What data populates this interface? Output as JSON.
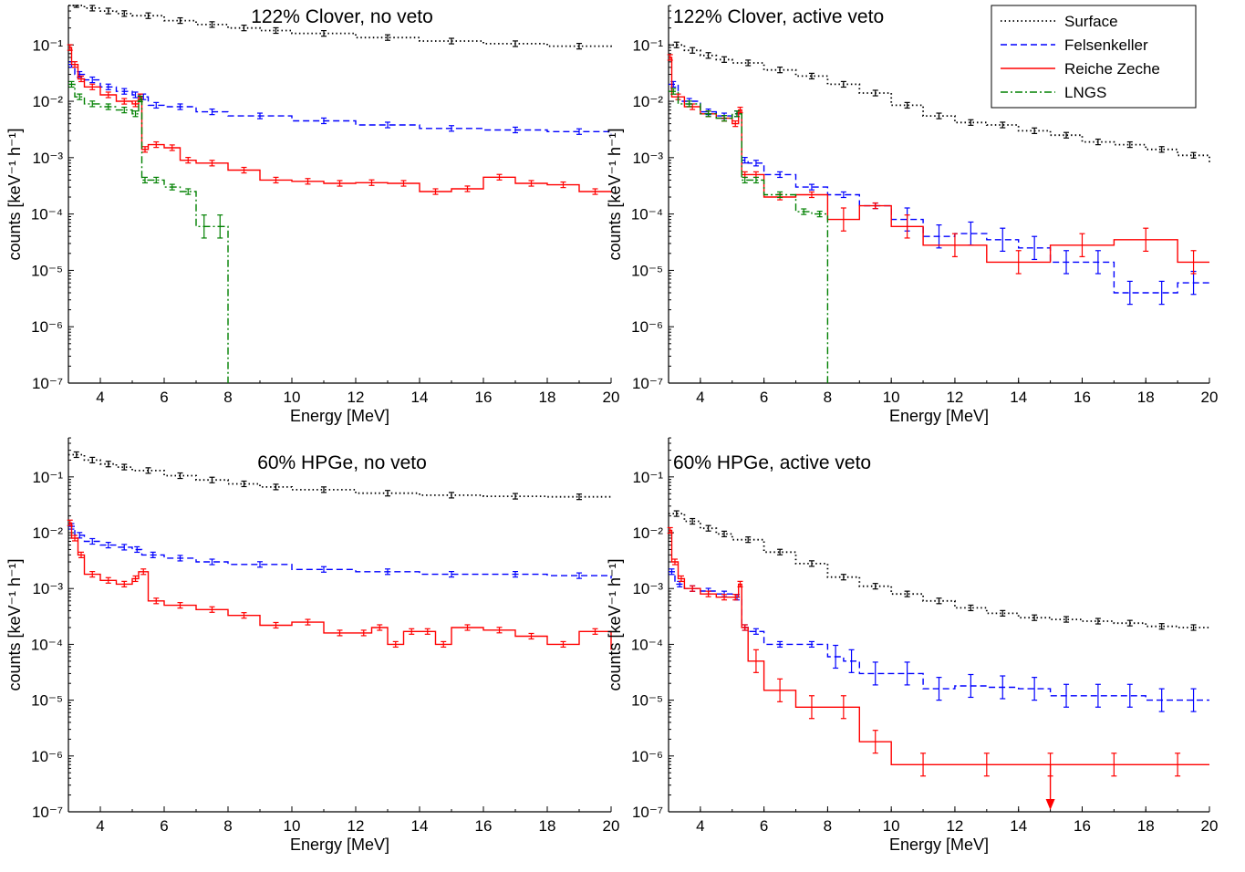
{
  "legend": {
    "placement": "top-right of upper-right panel",
    "entries": [
      {
        "name": "Surface",
        "color": "#000000",
        "style": "dotted"
      },
      {
        "name": "Felsenkeller",
        "color": "#0000ff",
        "style": "dashed"
      },
      {
        "name": "Reiche Zeche",
        "color": "#ff0000",
        "style": "solid"
      },
      {
        "name": "LNGS",
        "color": "#008000",
        "style": "dashdot"
      }
    ]
  },
  "chart_data": [
    {
      "type": "line",
      "title": "122% Clover, no veto",
      "xlabel": "Energy [MeV]",
      "ylabel": "counts [keV⁻¹ h⁻¹]",
      "xlim": [
        3,
        20
      ],
      "ylim_log10": [
        -7,
        -0.3
      ],
      "x_ticks": [
        4,
        6,
        8,
        10,
        12,
        14,
        16,
        18,
        20
      ],
      "y_ticks": [
        "10⁻¹",
        "10⁻²",
        "10⁻³",
        "10⁻⁴",
        "10⁻⁵",
        "10⁻⁶",
        "10⁻⁷"
      ],
      "series": [
        {
          "name": "Surface",
          "x": [
            3,
            3.5,
            4,
            4.5,
            5,
            6,
            7,
            8,
            9,
            10,
            12,
            14,
            16,
            18,
            20
          ],
          "y": [
            0.52,
            0.45,
            0.4,
            0.36,
            0.33,
            0.27,
            0.23,
            0.2,
            0.18,
            0.16,
            0.135,
            0.117,
            0.105,
            0.095,
            0.088
          ]
        },
        {
          "name": "Felsenkeller",
          "x": [
            3,
            3.2,
            3.5,
            4,
            4.5,
            5,
            5.2,
            5.5,
            6,
            7,
            8,
            10,
            12,
            14,
            16,
            18,
            20
          ],
          "y": [
            0.045,
            0.03,
            0.024,
            0.018,
            0.015,
            0.013,
            0.012,
            0.0085,
            0.008,
            0.0065,
            0.0055,
            0.0045,
            0.0038,
            0.0033,
            0.0031,
            0.0029,
            0.0026
          ]
        },
        {
          "name": "Reiche Zeche",
          "x": [
            3,
            3.1,
            3.3,
            3.5,
            4,
            4.5,
            5,
            5.2,
            5.3,
            5.5,
            6,
            6.5,
            7,
            8,
            9,
            10,
            11,
            12,
            13,
            14,
            15,
            16,
            17,
            18,
            19,
            20
          ],
          "y": [
            0.09,
            0.045,
            0.025,
            0.018,
            0.013,
            0.01,
            0.009,
            0.012,
            0.0014,
            0.0017,
            0.0015,
            0.0009,
            0.0008,
            0.0006,
            0.0004,
            0.00038,
            0.00035,
            0.00036,
            0.00035,
            0.00025,
            0.00028,
            0.00045,
            0.00035,
            0.00033,
            0.00025,
            0.00024
          ]
        },
        {
          "name": "LNGS",
          "x": [
            3,
            3.2,
            3.5,
            4,
            4.5,
            5,
            5.2,
            5.3,
            5.5,
            6,
            6.5,
            7,
            7.5,
            8
          ],
          "y": [
            0.02,
            0.012,
            0.009,
            0.008,
            0.007,
            0.006,
            0.011,
            0.0004,
            0.0004,
            0.0003,
            0.00025,
            6e-05,
            6e-05,
            1e-07
          ]
        }
      ]
    },
    {
      "type": "line",
      "title": "122% Clover, active veto",
      "xlabel": "Energy [MeV]",
      "ylabel": "counts [keV⁻¹ h⁻¹]",
      "xlim": [
        3,
        20
      ],
      "ylim_log10": [
        -7,
        -0.3
      ],
      "x_ticks": [
        4,
        6,
        8,
        10,
        12,
        14,
        16,
        18,
        20
      ],
      "y_ticks": [
        "10⁻¹",
        "10⁻²",
        "10⁻³",
        "10⁻⁴",
        "10⁻⁵",
        "10⁻⁶",
        "10⁻⁷"
      ],
      "series": [
        {
          "name": "Surface",
          "x": [
            3,
            3.5,
            4,
            4.5,
            5,
            6,
            7,
            8,
            9,
            10,
            11,
            12,
            13,
            14,
            15,
            16,
            17,
            18,
            19,
            20
          ],
          "y": [
            0.1,
            0.08,
            0.065,
            0.055,
            0.048,
            0.036,
            0.028,
            0.02,
            0.014,
            0.0085,
            0.0055,
            0.0042,
            0.0038,
            0.003,
            0.0025,
            0.0019,
            0.0017,
            0.0014,
            0.0011,
            0.0008
          ]
        },
        {
          "name": "Felsenkeller",
          "x": [
            3,
            3.3,
            4,
            4.5,
            5,
            5.3,
            5.5,
            6,
            7,
            8,
            9,
            10,
            11,
            12,
            13,
            14,
            15,
            16,
            17,
            18,
            19,
            20
          ],
          "y": [
            0.02,
            0.01,
            0.0065,
            0.0055,
            0.006,
            0.0009,
            0.0008,
            0.0005,
            0.0003,
            0.00022,
            0.00014,
            8e-05,
            4e-05,
            4.5e-05,
            3.5e-05,
            2.5e-05,
            1.4e-05,
            1.4e-05,
            4e-06,
            4e-06,
            6e-06,
            6e-06
          ]
        },
        {
          "name": "Reiche Zeche",
          "x": [
            3,
            3.1,
            3.5,
            4,
            4.5,
            5,
            5.2,
            5.3,
            5.5,
            6,
            7,
            8,
            9,
            10,
            11,
            13,
            15,
            17,
            19,
            20
          ],
          "y": [
            0.06,
            0.012,
            0.008,
            0.006,
            0.005,
            0.004,
            0.007,
            0.0005,
            0.0005,
            0.0002,
            0.00022,
            8e-05,
            0.00014,
            6e-05,
            2.8e-05,
            1.4e-05,
            2.8e-05,
            3.5e-05,
            1.4e-05,
            1.4e-05
          ]
        },
        {
          "name": "LNGS",
          "x": [
            3,
            3.3,
            4,
            4.5,
            5,
            5.3,
            5.5,
            6,
            7,
            7.5,
            8
          ],
          "y": [
            0.015,
            0.009,
            0.006,
            0.005,
            0.006,
            0.0004,
            0.0004,
            0.00022,
            0.00011,
            0.0001,
            1e-07
          ]
        }
      ]
    },
    {
      "type": "line",
      "title": "60% HPGe, no veto",
      "xlabel": "Energy [MeV]",
      "ylabel": "counts [keV⁻¹ h⁻¹]",
      "xlim": [
        3,
        20
      ],
      "ylim_log10": [
        -7,
        -0.3
      ],
      "x_ticks": [
        4,
        6,
        8,
        10,
        12,
        14,
        16,
        18,
        20
      ],
      "y_ticks": [
        "10⁻¹",
        "10⁻²",
        "10⁻³",
        "10⁻⁴",
        "10⁻⁵",
        "10⁻⁶",
        "10⁻⁷"
      ],
      "series": [
        {
          "name": "Surface",
          "x": [
            3,
            3.5,
            4,
            4.5,
            5,
            6,
            7,
            8,
            9,
            10,
            12,
            14,
            16,
            18,
            20
          ],
          "y": [
            0.25,
            0.2,
            0.17,
            0.15,
            0.13,
            0.105,
            0.088,
            0.075,
            0.066,
            0.059,
            0.051,
            0.047,
            0.045,
            0.044,
            0.043
          ]
        },
        {
          "name": "Felsenkeller",
          "x": [
            3,
            3.2,
            3.5,
            4,
            4.5,
            5,
            5.3,
            6,
            7,
            8,
            10,
            12,
            14,
            16,
            18,
            20
          ],
          "y": [
            0.013,
            0.009,
            0.007,
            0.006,
            0.0055,
            0.005,
            0.004,
            0.0035,
            0.003,
            0.0027,
            0.0022,
            0.002,
            0.0018,
            0.0018,
            0.0017,
            0.0015
          ]
        },
        {
          "name": "Reiche Zeche",
          "x": [
            3,
            3.1,
            3.3,
            3.5,
            4,
            4.5,
            5,
            5.2,
            5.5,
            6,
            7,
            8,
            9,
            10,
            11,
            12,
            12.5,
            13,
            13.5,
            14,
            14.5,
            15,
            16,
            17,
            18,
            19,
            20
          ],
          "y": [
            0.015,
            0.008,
            0.004,
            0.0018,
            0.0014,
            0.0012,
            0.0015,
            0.002,
            0.0006,
            0.0005,
            0.00042,
            0.00033,
            0.00022,
            0.00025,
            0.00016,
            0.00016,
            0.0002,
            0.0001,
            0.00017,
            0.00017,
            0.0001,
            0.0002,
            0.00018,
            0.00014,
            0.0001,
            0.00017,
            8e-05
          ]
        }
      ]
    },
    {
      "type": "line",
      "title": "60% HPGe, active veto",
      "xlabel": "Energy [MeV]",
      "ylabel": "counts [keV⁻¹ h⁻¹]",
      "xlim": [
        3,
        20
      ],
      "ylim_log10": [
        -7,
        -0.3
      ],
      "x_ticks": [
        4,
        6,
        8,
        10,
        12,
        14,
        16,
        18,
        20
      ],
      "y_ticks": [
        "10⁻¹",
        "10⁻²",
        "10⁻³",
        "10⁻⁴",
        "10⁻⁵",
        "10⁻⁶",
        "10⁻⁷"
      ],
      "upper_limit_arrow": {
        "x": 15,
        "y_from": 7e-07,
        "y_to": 1e-07,
        "color": "#ff0000"
      },
      "series": [
        {
          "name": "Surface",
          "x": [
            3,
            3.5,
            4,
            4.5,
            5,
            6,
            7,
            8,
            9,
            10,
            11,
            12,
            13,
            14,
            15,
            16,
            17,
            18,
            19,
            20
          ],
          "y": [
            0.022,
            0.016,
            0.012,
            0.0095,
            0.0075,
            0.0045,
            0.0028,
            0.0016,
            0.0011,
            0.0008,
            0.0006,
            0.00045,
            0.00036,
            0.0003,
            0.00028,
            0.00026,
            0.00024,
            0.00021,
            0.0002,
            0.0002
          ]
        },
        {
          "name": "Felsenkeller",
          "x": [
            3,
            3.2,
            3.5,
            4,
            4.5,
            5,
            5.3,
            5.5,
            6,
            7,
            8,
            8.5,
            9,
            10,
            11,
            12,
            13,
            14,
            15,
            16,
            17,
            18,
            19,
            20
          ],
          "y": [
            0.002,
            0.0012,
            0.001,
            0.0009,
            0.0008,
            0.0007,
            0.0002,
            0.00017,
            0.0001,
            0.0001,
            6e-05,
            5e-05,
            3e-05,
            3e-05,
            1.6e-05,
            1.8e-05,
            1.7e-05,
            1.6e-05,
            1.2e-05,
            1.2e-05,
            1.2e-05,
            1e-05,
            1e-05,
            1e-05
          ]
        },
        {
          "name": "Reiche Zeche",
          "x": [
            3,
            3.1,
            3.3,
            3.5,
            4,
            4.5,
            5,
            5.2,
            5.3,
            5.5,
            6,
            7,
            8,
            9,
            10,
            12,
            14,
            16,
            18,
            20
          ],
          "y": [
            0.011,
            0.003,
            0.0015,
            0.001,
            0.0008,
            0.0007,
            0.0007,
            0.0012,
            0.0002,
            5e-05,
            1.5e-05,
            7.5e-06,
            7.5e-06,
            1.8e-06,
            7e-07,
            7e-07,
            7e-07,
            7e-07,
            7e-07,
            7e-07
          ]
        }
      ]
    }
  ]
}
